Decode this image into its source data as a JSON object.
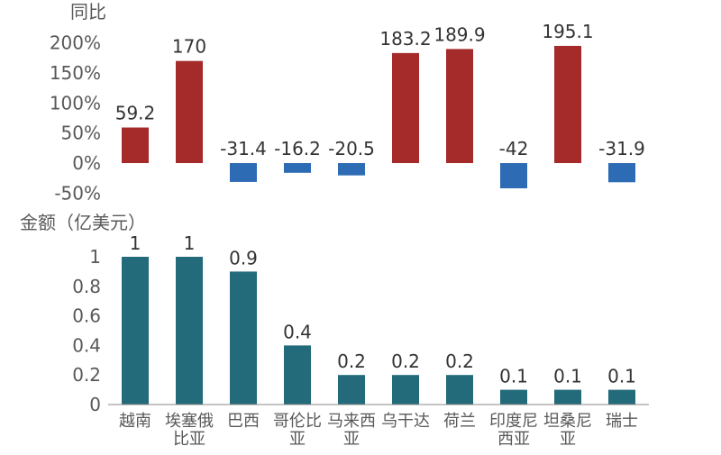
{
  "chart_data": [
    {
      "type": "bar",
      "ylabel": "同比",
      "ylim": [
        -50,
        200
      ],
      "yticks": [
        "-50%",
        "0%",
        "50%",
        "100%",
        "150%",
        "200%"
      ],
      "ytick_values": [
        -50,
        0,
        50,
        100,
        150,
        200
      ],
      "categories": [
        "越南",
        "埃塞俄比亚",
        "巴西",
        "哥伦比亚",
        "马来西亚",
        "乌干达",
        "荷兰",
        "印度尼西亚",
        "坦桑尼亚",
        "瑞士"
      ],
      "values": [
        59.2,
        170,
        -31.4,
        -16.2,
        -20.5,
        183.2,
        189.9,
        -42,
        195.1,
        -31.9
      ],
      "data_labels": [
        "59.2",
        "170",
        "-31.4",
        "-16.2",
        "-20.5",
        "183.2",
        "189.9",
        "-42",
        "195.1",
        "-31.9"
      ],
      "colors": {
        "positive": "#a52a2a",
        "negative": "#2e6bb5"
      }
    },
    {
      "type": "bar",
      "ylabel": "金额（亿美元）",
      "ylim": [
        0,
        1
      ],
      "yticks": [
        "0",
        "0.2",
        "0.4",
        "0.6",
        "0.8",
        "1"
      ],
      "ytick_values": [
        0,
        0.2,
        0.4,
        0.6,
        0.8,
        1
      ],
      "categories": [
        "越南",
        "埃塞俄比亚",
        "巴西",
        "哥伦比亚",
        "马来西亚",
        "乌干达",
        "荷兰",
        "印度尼西亚",
        "坦桑尼亚",
        "瑞士"
      ],
      "category_lines": [
        [
          "越南"
        ],
        [
          "埃塞俄",
          "比亚"
        ],
        [
          "巴西"
        ],
        [
          "哥伦比",
          "亚"
        ],
        [
          "马来西",
          "亚"
        ],
        [
          "乌干达"
        ],
        [
          "荷兰"
        ],
        [
          "印度尼",
          "西亚"
        ],
        [
          "坦桑尼",
          "亚"
        ],
        [
          "瑞士"
        ]
      ],
      "values": [
        1,
        1,
        0.9,
        0.4,
        0.2,
        0.2,
        0.2,
        0.1,
        0.1,
        0.1
      ],
      "data_labels": [
        "1",
        "1",
        "0.9",
        "0.4",
        "0.2",
        "0.2",
        "0.2",
        "0.1",
        "0.1",
        "0.1"
      ],
      "colors": {
        "bar": "#236a7a"
      }
    }
  ],
  "colors": {
    "axis_text": "#595959",
    "label_text": "#333333",
    "axis_line": "#888888"
  }
}
